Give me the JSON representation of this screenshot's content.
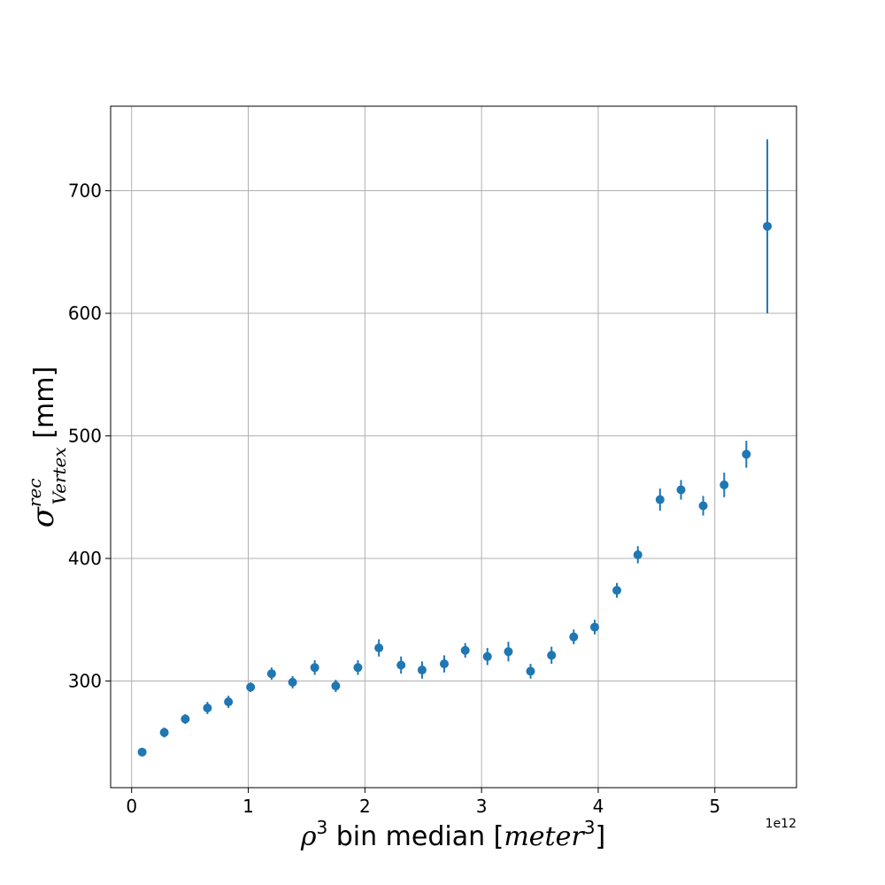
{
  "chart_data": {
    "type": "scatter",
    "title": "",
    "xlabel": {
      "rho": "ρ",
      "superscript": "3",
      "middle": " bin median [",
      "meter": "meter",
      "close": "]"
    },
    "ylabel": {
      "sigma": "σ",
      "superscript": "rec",
      "subscript": "Vertex",
      "unit": " [mm]"
    },
    "x_offset_label": "1e12",
    "xlim": [
      -0.18,
      5.7
    ],
    "ylim": [
      213,
      769
    ],
    "x_ticks": [
      {
        "value": 0,
        "label": "0"
      },
      {
        "value": 1,
        "label": "1"
      },
      {
        "value": 2,
        "label": "2"
      },
      {
        "value": 3,
        "label": "3"
      },
      {
        "value": 4,
        "label": "4"
      },
      {
        "value": 5,
        "label": "5"
      }
    ],
    "y_ticks": [
      {
        "value": 300,
        "label": "300"
      },
      {
        "value": 400,
        "label": "400"
      },
      {
        "value": 500,
        "label": "500"
      },
      {
        "value": 600,
        "label": "600"
      },
      {
        "value": 700,
        "label": "700"
      }
    ],
    "grid": true,
    "marker_color": "#1f77b4",
    "points": [
      {
        "x": 0.09,
        "y": 242,
        "err": 3
      },
      {
        "x": 0.28,
        "y": 258,
        "err": 4
      },
      {
        "x": 0.46,
        "y": 269,
        "err": 4
      },
      {
        "x": 0.65,
        "y": 278,
        "err": 5
      },
      {
        "x": 0.83,
        "y": 283,
        "err": 5
      },
      {
        "x": 1.02,
        "y": 295,
        "err": 4
      },
      {
        "x": 1.2,
        "y": 306,
        "err": 5
      },
      {
        "x": 1.38,
        "y": 299,
        "err": 5
      },
      {
        "x": 1.57,
        "y": 311,
        "err": 6
      },
      {
        "x": 1.75,
        "y": 296,
        "err": 5
      },
      {
        "x": 1.94,
        "y": 311,
        "err": 6
      },
      {
        "x": 2.12,
        "y": 327,
        "err": 7
      },
      {
        "x": 2.31,
        "y": 313,
        "err": 7
      },
      {
        "x": 2.49,
        "y": 309,
        "err": 7
      },
      {
        "x": 2.68,
        "y": 314,
        "err": 7
      },
      {
        "x": 2.86,
        "y": 325,
        "err": 6
      },
      {
        "x": 3.05,
        "y": 320,
        "err": 7
      },
      {
        "x": 3.23,
        "y": 324,
        "err": 8
      },
      {
        "x": 3.42,
        "y": 308,
        "err": 6
      },
      {
        "x": 3.6,
        "y": 321,
        "err": 7
      },
      {
        "x": 3.79,
        "y": 336,
        "err": 6
      },
      {
        "x": 3.97,
        "y": 344,
        "err": 6
      },
      {
        "x": 4.16,
        "y": 374,
        "err": 6
      },
      {
        "x": 4.34,
        "y": 403,
        "err": 7
      },
      {
        "x": 4.53,
        "y": 448,
        "err": 9
      },
      {
        "x": 4.71,
        "y": 456,
        "err": 8
      },
      {
        "x": 4.9,
        "y": 443,
        "err": 8
      },
      {
        "x": 5.08,
        "y": 460,
        "err": 10
      },
      {
        "x": 5.27,
        "y": 485,
        "err": 11
      },
      {
        "x": 5.45,
        "y": 671,
        "err": 71
      }
    ]
  }
}
